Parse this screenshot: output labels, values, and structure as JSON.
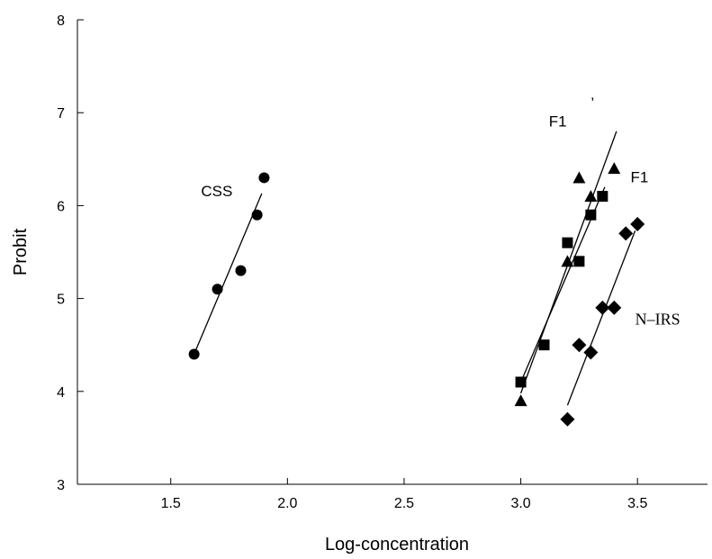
{
  "chart_data": {
    "type": "scatter",
    "xlabel": "Log-concentration",
    "ylabel": "Probit",
    "xlim": [
      1.1,
      3.8
    ],
    "ylim": [
      3,
      8
    ],
    "xticks": [
      "1.5",
      "2.0",
      "2.5",
      "3.0",
      "3.5"
    ],
    "xtick_values": [
      1.5,
      2.0,
      2.5,
      3.0,
      3.5
    ],
    "yticks": [
      "3",
      "4",
      "5",
      "6",
      "7",
      "8"
    ],
    "ytick_values": [
      3,
      4,
      5,
      6,
      7,
      8
    ],
    "grid": false,
    "series": [
      {
        "name": "CSS",
        "marker": "circle",
        "points": [
          [
            1.6,
            4.4
          ],
          [
            1.7,
            5.1
          ],
          [
            1.8,
            5.3
          ],
          [
            1.87,
            5.9
          ],
          [
            1.9,
            6.3
          ]
        ],
        "fit": [
          [
            1.6,
            4.4
          ],
          [
            1.89,
            6.13
          ]
        ]
      },
      {
        "name": "F1",
        "marker": "square",
        "points": [
          [
            3.0,
            4.1
          ],
          [
            3.1,
            4.5
          ],
          [
            3.2,
            5.6
          ],
          [
            3.25,
            5.4
          ],
          [
            3.3,
            5.9
          ],
          [
            3.35,
            6.1
          ]
        ],
        "fit": [
          [
            3.0,
            4.1
          ],
          [
            3.36,
            6.2
          ]
        ]
      },
      {
        "name": "F1’",
        "marker": "triangle",
        "points": [
          [
            3.0,
            3.9
          ],
          [
            3.2,
            5.4
          ],
          [
            3.25,
            6.3
          ],
          [
            3.3,
            6.1
          ],
          [
            3.4,
            6.4
          ]
        ],
        "fit": [
          [
            3.0,
            3.98
          ],
          [
            3.41,
            6.8
          ]
        ]
      },
      {
        "name": "N-IRS",
        "marker": "diamond",
        "points": [
          [
            3.2,
            3.7
          ],
          [
            3.25,
            4.5
          ],
          [
            3.3,
            4.42
          ],
          [
            3.35,
            4.9
          ],
          [
            3.4,
            4.9
          ],
          [
            3.45,
            5.7
          ],
          [
            3.5,
            5.8
          ]
        ],
        "fit": [
          [
            3.2,
            3.85
          ],
          [
            3.49,
            5.73
          ]
        ]
      }
    ],
    "annotations": [
      {
        "text": "CSS",
        "x": 1.63,
        "y": 6.1
      },
      {
        "text": "F1",
        "x": 3.12,
        "y": 6.85
      },
      {
        "text": "’",
        "x": 3.3,
        "y": 7.05
      },
      {
        "text": "F1",
        "x": 3.47,
        "y": 6.25
      },
      {
        "text": "N–IRS",
        "x": 3.49,
        "y": 4.72
      }
    ]
  }
}
